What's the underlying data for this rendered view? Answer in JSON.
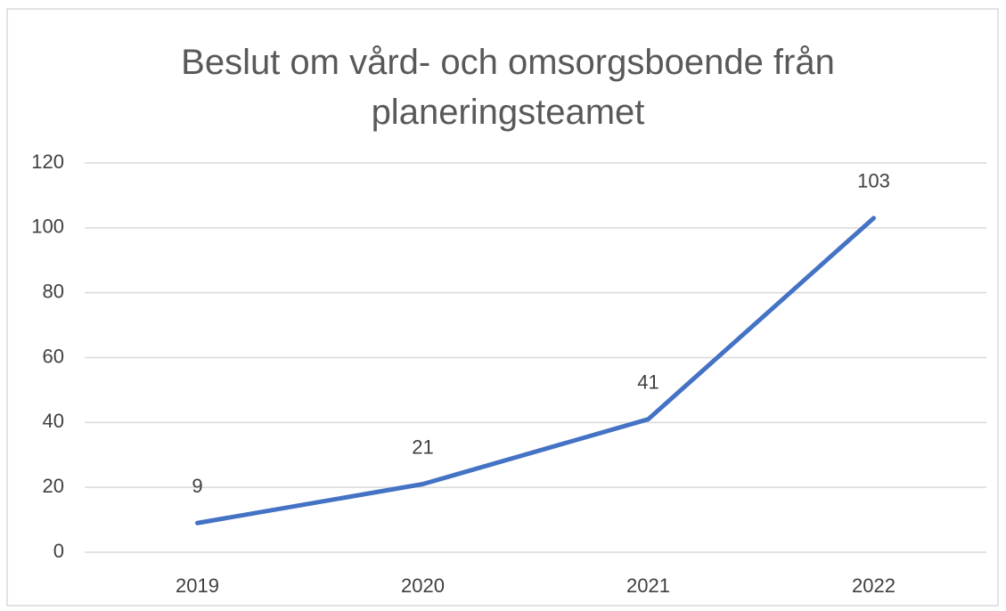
{
  "chart_data": {
    "type": "line",
    "title": "Beslut om vård- och omsorgsboende från planeringsteamet",
    "categories": [
      "2019",
      "2020",
      "2021",
      "2022"
    ],
    "values": [
      9,
      21,
      41,
      103
    ],
    "color": "#4472c4",
    "ylim": [
      0,
      120
    ],
    "yticks": [
      0,
      20,
      40,
      60,
      80,
      100,
      120
    ],
    "grid": true,
    "data_labels": true
  }
}
